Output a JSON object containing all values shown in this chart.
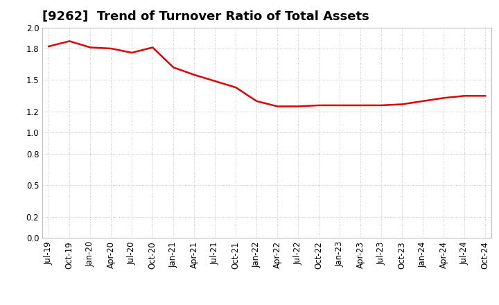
{
  "title": "[9262]  Trend of Turnover Ratio of Total Assets",
  "x_labels": [
    "Jul-19",
    "Oct-19",
    "Jan-20",
    "Apr-20",
    "Jul-20",
    "Oct-20",
    "Jan-21",
    "Apr-21",
    "Jul-21",
    "Oct-21",
    "Jan-22",
    "Apr-22",
    "Jul-22",
    "Oct-22",
    "Jan-23",
    "Apr-23",
    "Jul-23",
    "Oct-23",
    "Jan-24",
    "Apr-24",
    "Jul-24",
    "Oct-24"
  ],
  "y_values": [
    1.82,
    1.87,
    1.81,
    1.8,
    1.76,
    1.81,
    1.62,
    1.55,
    1.49,
    1.43,
    1.3,
    1.25,
    1.25,
    1.26,
    1.26,
    1.26,
    1.26,
    1.27,
    1.3,
    1.33,
    1.35,
    1.35
  ],
  "line_color": "#dd0000",
  "line_width": 1.8,
  "ylim": [
    0.0,
    2.0
  ],
  "yticks": [
    0.0,
    0.2,
    0.5,
    0.8,
    1.0,
    1.2,
    1.5,
    1.8,
    2.0
  ],
  "background_color": "#ffffff",
  "grid_color": "#999999",
  "title_fontsize": 13,
  "tick_fontsize": 8.5
}
